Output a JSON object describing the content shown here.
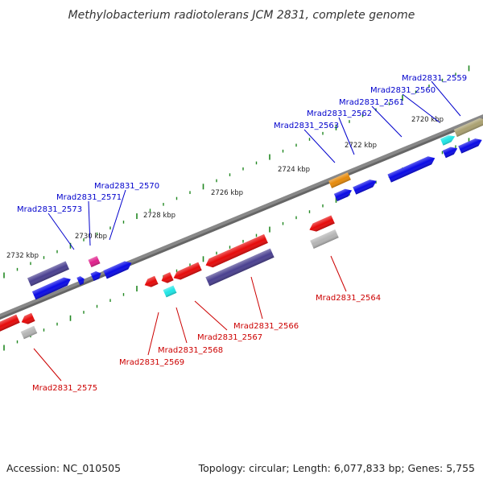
{
  "title": "Methylobacterium radiotolerans JCM 2831, complete genome",
  "footer": {
    "accession": "Accession: NC_010505",
    "topology": "Topology: circular; Length: 6,077,833 bp; Genes: 5,755"
  },
  "colors": {
    "backbone": "#888888",
    "tick": "#228822",
    "forward_label": "#0000cc",
    "reverse_label": "#cc0000",
    "blue_gene": "#0a0ae6",
    "red_gene": "#e60a0a",
    "navy_gene": "#4a4090",
    "gray_gene": "#b4b4b4",
    "magenta_gene": "#e0208c",
    "cyan_gene": "#1ee6e6",
    "orange_gene": "#e68a0a",
    "olive_gene": "#aaa070"
  },
  "kbp_labels": [
    "2720 kbp",
    "2722 kbp",
    "2724 kbp",
    "2726 kbp",
    "2728 kbp",
    "2730 kbp",
    "2732 kbp"
  ],
  "forward_labels": [
    "Mrad2831_2559",
    "Mrad2831_2560",
    "Mrad2831_2561",
    "Mrad2831_2562",
    "Mrad2831_2563",
    "Mrad2831_2570",
    "Mrad2831_2571",
    "Mrad2831_2573"
  ],
  "reverse_labels": [
    "Mrad2831_2564",
    "Mrad2831_2566",
    "Mrad2831_2567",
    "Mrad2831_2568",
    "Mrad2831_2569",
    "Mrad2831_2575"
  ]
}
